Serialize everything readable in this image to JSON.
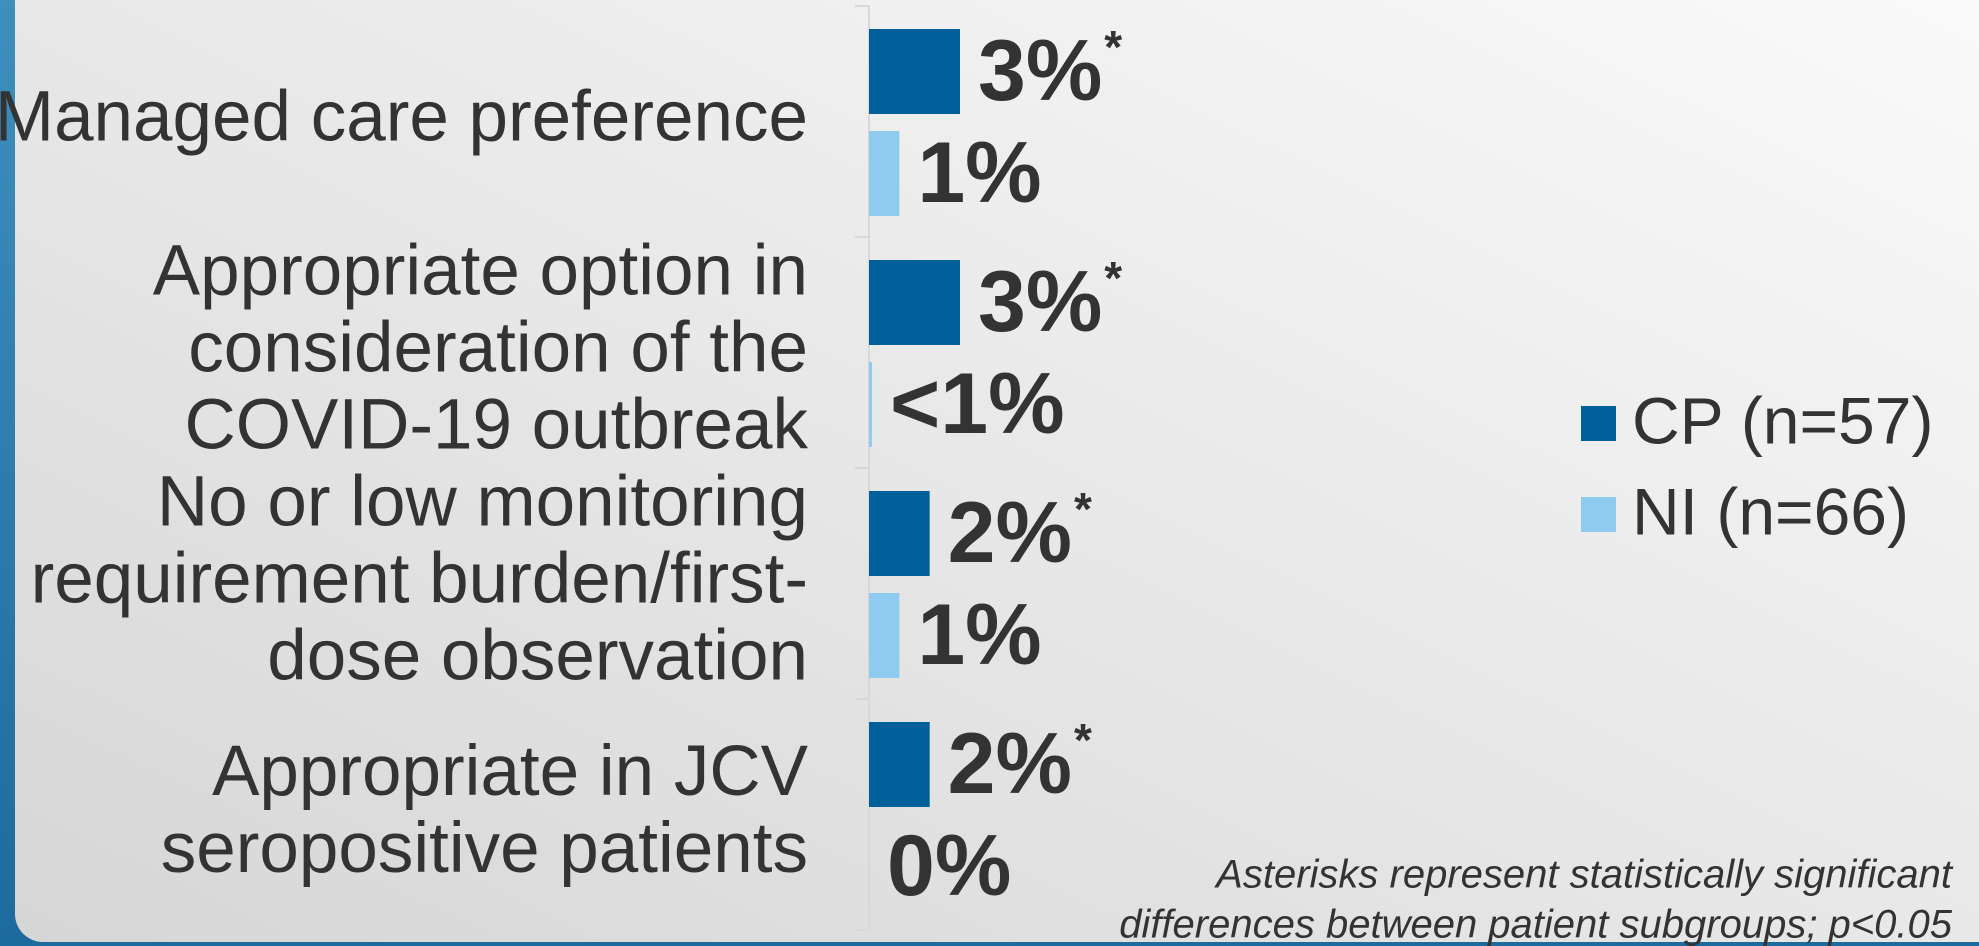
{
  "chart_data": {
    "type": "barh",
    "categories": [
      [
        "Managed care preference"
      ],
      [
        "Appropriate option in",
        "consideration of the",
        "COVID-19 outbreak"
      ],
      [
        "No or low monitoring",
        "requirement burden/first-",
        "dose observation"
      ],
      [
        "Appropriate in JCV",
        "seropositive patients"
      ]
    ],
    "series": [
      {
        "name": "CP (n=57)",
        "color": "#00609a",
        "values": [
          3,
          3,
          2,
          2
        ],
        "value_labels": [
          "3%",
          "3%",
          "2%",
          "2%"
        ],
        "significance": [
          "*",
          "*",
          "*",
          "*"
        ]
      },
      {
        "name": "NI (n=66)",
        "color": "#8ecbee",
        "values": [
          1,
          0.1,
          1,
          0
        ],
        "value_labels": [
          "1%",
          "<1%",
          "1%",
          "0%"
        ]
      }
    ],
    "xlim": [
      0,
      30
    ],
    "legend": "right",
    "footnote": [
      "Asterisks represent statistically significant",
      "differences between patient subgroups; p<0.05"
    ]
  }
}
